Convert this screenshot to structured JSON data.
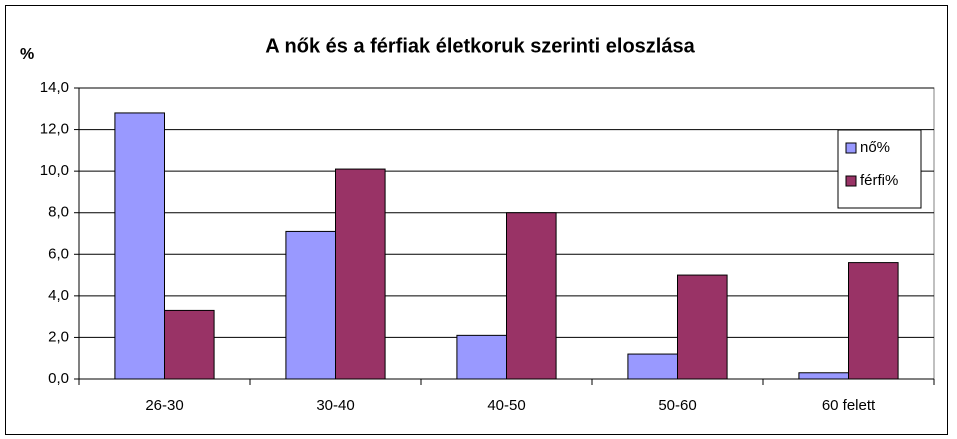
{
  "chart_data": {
    "type": "bar",
    "title": "A nők és a férfiak életkoruk szerinti eloszlása",
    "ylabel": "%",
    "categories": [
      "26-30",
      "30-40",
      "40-50",
      "50-60",
      "60 felett"
    ],
    "series": [
      {
        "name": "nő%",
        "color": "#9999ff",
        "values": [
          12.8,
          7.1,
          2.1,
          1.2,
          0.3
        ]
      },
      {
        "name": "férfi%",
        "color": "#993366",
        "values": [
          3.3,
          10.1,
          8.0,
          5.0,
          5.6
        ]
      }
    ],
    "ylim": [
      0,
      14
    ],
    "yticks": [
      {
        "value": 0,
        "label": "0,0"
      },
      {
        "value": 2,
        "label": "2,0"
      },
      {
        "value": 4,
        "label": "4,0"
      },
      {
        "value": 6,
        "label": "6,0"
      },
      {
        "value": 8,
        "label": "8,0"
      },
      {
        "value": 10,
        "label": "10,0"
      },
      {
        "value": 12,
        "label": "12,0"
      },
      {
        "value": 14,
        "label": "14,0"
      }
    ],
    "grid": true,
    "legend": "right"
  }
}
